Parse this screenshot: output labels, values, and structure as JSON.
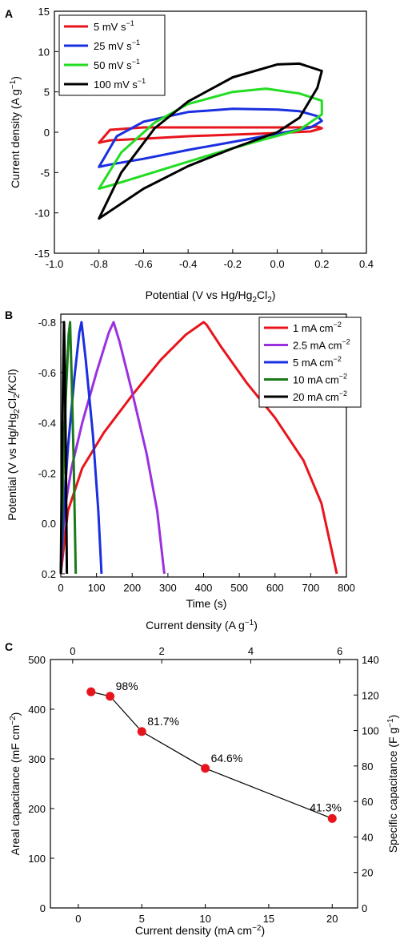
{
  "chart_data": [
    {
      "panel": "A",
      "type": "line",
      "xlabel": "Potential (V vs Hg/Hg",
      "xlabel_sub": "2",
      "xlabel_main2": "Cl",
      "xlabel_sub2": "2",
      "xlabel_end": ")",
      "ylabel": "Current density (A g",
      "ylabel_sup": "−1",
      "ylabel_end": ")",
      "xlim": [
        -1.0,
        0.4
      ],
      "ylim": [
        -15,
        15
      ],
      "xticks": [
        -1.0,
        -0.8,
        -0.6,
        -0.4,
        -0.2,
        0.0,
        0.2,
        0.4
      ],
      "xtick_labels": [
        "-1.0",
        "-0.8",
        "-0.6",
        "-0.4",
        "-0.2",
        "0.0",
        "0.2",
        "0.4"
      ],
      "yticks": [
        -15,
        -10,
        -5,
        0,
        5,
        10,
        15
      ],
      "ytick_labels": [
        "-15",
        "-10",
        "-5",
        "0",
        "5",
        "10",
        "15"
      ],
      "legend_position": "top-left",
      "series": [
        {
          "name": "5 mV s",
          "name_sup": "−1",
          "color": "#e8141c",
          "x": [
            -0.8,
            -0.75,
            -0.6,
            -0.4,
            -0.2,
            0.0,
            0.1,
            0.18,
            0.2,
            0.15,
            0.0,
            -0.2,
            -0.4,
            -0.6,
            -0.75,
            -0.8
          ],
          "y": [
            -1.3,
            0.3,
            0.6,
            0.6,
            0.6,
            0.6,
            0.6,
            0.7,
            0.5,
            0.1,
            -0.1,
            -0.3,
            -0.5,
            -0.8,
            -1.0,
            -1.3
          ]
        },
        {
          "name": "25 mV s",
          "name_sup": "−1",
          "color": "#1a2fe0",
          "x": [
            -0.8,
            -0.72,
            -0.6,
            -0.4,
            -0.2,
            0.0,
            0.1,
            0.18,
            0.2,
            0.15,
            0.0,
            -0.2,
            -0.4,
            -0.6,
            -0.75,
            -0.8
          ],
          "y": [
            -4.3,
            -0.5,
            1.3,
            2.5,
            2.9,
            2.8,
            2.6,
            2.0,
            1.4,
            0.6,
            -0.2,
            -1.2,
            -2.2,
            -3.3,
            -4.0,
            -4.3
          ]
        },
        {
          "name": "50 mV s",
          "name_sup": "−1",
          "color": "#22dd22",
          "x": [
            -0.8,
            -0.7,
            -0.55,
            -0.4,
            -0.2,
            -0.05,
            0.1,
            0.2,
            0.2,
            0.1,
            -0.1,
            -0.3,
            -0.5,
            -0.7,
            -0.8
          ],
          "y": [
            -7.0,
            -2.5,
            1.2,
            3.5,
            5.0,
            5.4,
            4.8,
            3.9,
            2.2,
            0.3,
            -1.2,
            -2.8,
            -4.5,
            -6.2,
            -7.0
          ]
        },
        {
          "name": "100 mV s",
          "name_sup": "−1",
          "color": "#000000",
          "x": [
            -0.8,
            -0.7,
            -0.55,
            -0.4,
            -0.2,
            0.0,
            0.1,
            0.2,
            0.18,
            0.1,
            0.0,
            -0.2,
            -0.4,
            -0.6,
            -0.8
          ],
          "y": [
            -10.7,
            -5.0,
            0.5,
            3.8,
            6.8,
            8.4,
            8.5,
            7.6,
            5.5,
            1.8,
            0.0,
            -2.0,
            -4.2,
            -7.0,
            -10.7
          ]
        }
      ]
    },
    {
      "panel": "B",
      "type": "line",
      "xlabel": "Time (s)",
      "ylabel": "Potential (V vs Hg/Hg",
      "ylabel_sub": "2",
      "ylabel_mid": "Cl",
      "ylabel_sub2": "2",
      "ylabel_end": "/KCl)",
      "xlim": [
        0,
        800
      ],
      "ylim": [
        -0.8,
        0.2
      ],
      "y_inverted": true,
      "xticks": [
        0,
        100,
        200,
        300,
        400,
        500,
        600,
        700,
        800
      ],
      "xtick_labels": [
        "0",
        "100",
        "200",
        "300",
        "400",
        "500",
        "600",
        "700",
        "800"
      ],
      "yticks": [
        -0.8,
        -0.6,
        -0.4,
        -0.2,
        0.0,
        0.2
      ],
      "ytick_labels": [
        "-0.8",
        "-0.6",
        "-0.4",
        "-0.2",
        "0.0",
        "0.2"
      ],
      "legend_position": "top-right",
      "series": [
        {
          "name": "1 mA cm",
          "name_sup": "−2",
          "color": "#e8141c",
          "x": [
            0,
            20,
            60,
            120,
            200,
            280,
            350,
            400,
            408,
            450,
            520,
            600,
            680,
            730,
            773
          ],
          "y": [
            0.2,
            -0.05,
            -0.22,
            -0.36,
            -0.51,
            -0.65,
            -0.75,
            -0.8,
            -0.79,
            -0.7,
            -0.56,
            -0.42,
            -0.25,
            -0.08,
            0.2
          ]
        },
        {
          "name": "2.5 mA cm",
          "name_sup": "−2",
          "color": "#9b30e0",
          "x": [
            0,
            10,
            30,
            60,
            100,
            135,
            148,
            165,
            200,
            240,
            270,
            290
          ],
          "y": [
            0.2,
            -0.05,
            -0.22,
            -0.4,
            -0.6,
            -0.76,
            -0.8,
            -0.72,
            -0.52,
            -0.28,
            -0.05,
            0.2
          ]
        },
        {
          "name": "5 mA cm",
          "name_sup": "−2",
          "color": "#1a2fe0",
          "x": [
            0,
            8,
            20,
            38,
            52,
            58,
            70,
            90,
            105,
            114
          ],
          "y": [
            0.2,
            -0.05,
            -0.3,
            -0.58,
            -0.76,
            -0.8,
            -0.65,
            -0.35,
            -0.05,
            0.2
          ]
        },
        {
          "name": "10 mA cm",
          "name_sup": "−2",
          "color": "#1a7a1a",
          "x": [
            0,
            6,
            14,
            22,
            26,
            30,
            36,
            42
          ],
          "y": [
            0.2,
            -0.15,
            -0.5,
            -0.75,
            -0.8,
            -0.6,
            -0.25,
            0.2
          ]
        },
        {
          "name": "20 mA cm",
          "name_sup": "−2",
          "color": "#000000",
          "x": [
            0,
            3,
            6,
            9,
            11,
            14,
            17
          ],
          "y": [
            0.2,
            -0.2,
            -0.55,
            -0.8,
            -0.65,
            -0.3,
            0.2
          ]
        }
      ]
    },
    {
      "panel": "C",
      "type": "scatter",
      "xlabel": "Current density (mA cm",
      "xlabel_sup": "−2",
      "xlabel_end": ")",
      "x2label": "Current density (A g",
      "x2label_sup": "−1",
      "x2label_end": ")",
      "ylabel": "Areal capacitance (mF cm",
      "ylabel_sup": "−2",
      "ylabel_end": ")",
      "y2label": "Specific capacitance (F g",
      "y2label_sup": "−1",
      "y2label_end": ")",
      "xlim": [
        -2.2,
        22
      ],
      "ylim": [
        0,
        500
      ],
      "x2lim": [
        -0.5,
        6.4
      ],
      "y2lim": [
        0,
        140
      ],
      "xticks": [
        0,
        5,
        10,
        15,
        20
      ],
      "xtick_labels": [
        "0",
        "5",
        "10",
        "15",
        "20"
      ],
      "yticks": [
        0,
        100,
        200,
        300,
        400,
        500
      ],
      "ytick_labels": [
        "0",
        "100",
        "200",
        "300",
        "400",
        "500"
      ],
      "x2ticks": [
        0,
        2,
        4,
        6
      ],
      "x2tick_labels": [
        "0",
        "2",
        "4",
        "6"
      ],
      "y2ticks": [
        0,
        20,
        40,
        60,
        80,
        100,
        120,
        140
      ],
      "y2tick_labels": [
        "0",
        "20",
        "40",
        "60",
        "80",
        "100",
        "120",
        "140"
      ],
      "marker_color": "#e8141c",
      "x": [
        1,
        2.5,
        5,
        10,
        20
      ],
      "y": [
        435,
        426,
        355,
        281,
        180
      ],
      "annotations": [
        "",
        "98%",
        "81.7%",
        "64.6%",
        "41.3%"
      ]
    }
  ]
}
